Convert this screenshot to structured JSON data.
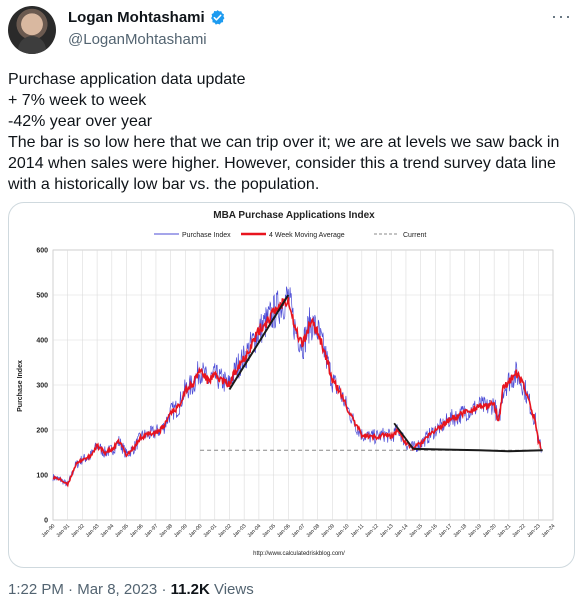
{
  "author": {
    "display_name": "Logan Mohtashami",
    "handle": "@LoganMohtashami"
  },
  "tweet": {
    "lines": [
      "Purchase application data update",
      "+ 7% week to week",
      "-42% year over year",
      "The bar is so low here that we can trip over it; we are at levels we saw back in 2014 when sales were higher. However, consider this a trend survey data line with a historically low bar vs. the population."
    ],
    "time": "1:22 PM",
    "date": "Mar 8, 2023",
    "separator": "·",
    "views_count": "11.2K",
    "views_label": "Views"
  },
  "colors": {
    "purchase_index": "#4b4bd6",
    "moving_average": "#e8141e",
    "current": "#888888",
    "trend": "#1a1a1a",
    "verified": "#1d9bf0"
  },
  "chart_data": {
    "type": "line",
    "title": "MBA Purchase Applications Index",
    "ylabel": "Purchase Index",
    "ylim": [
      0,
      600
    ],
    "yticks": [
      0,
      100,
      200,
      300,
      400,
      500,
      600
    ],
    "x_tick_labels": [
      "Jan-90",
      "Jan-91",
      "Jan-92",
      "Jan-93",
      "Jan-94",
      "Jan-95",
      "Jan-96",
      "Jan-97",
      "Jan-98",
      "Jan-99",
      "Jan-00",
      "Jan-01",
      "Jan-02",
      "Jan-03",
      "Jan-04",
      "Jan-05",
      "Jan-06",
      "Jan-07",
      "Jan-08",
      "Jan-09",
      "Jan-10",
      "Jan-11",
      "Jan-12",
      "Jan-13",
      "Jan-14",
      "Jan-15",
      "Jan-16",
      "Jan-17",
      "Jan-18",
      "Jan-19",
      "Jan-20",
      "Jan-21",
      "Jan-22",
      "Jan-23",
      "Jan-24"
    ],
    "x_range": [
      1990.0,
      2024.0
    ],
    "source": "http://www.calculatedriskblog.com/",
    "current_value": 155,
    "current_start": 2000.0,
    "legend": [
      "Purchase Index",
      "4 Week Moving Average",
      "Current"
    ],
    "legend_position": "top",
    "grid": true,
    "series": [
      {
        "name": "4 Week Moving Average",
        "x": [
          1990.0,
          1990.5,
          1991.0,
          1991.5,
          1992.0,
          1992.5,
          1993.0,
          1993.5,
          1994.0,
          1994.5,
          1995.0,
          1995.5,
          1996.0,
          1996.5,
          1997.0,
          1997.5,
          1998.0,
          1998.5,
          1999.0,
          1999.5,
          2000.0,
          2000.5,
          2001.0,
          2001.5,
          2002.0,
          2002.5,
          2003.0,
          2003.5,
          2004.0,
          2004.5,
          2005.0,
          2005.5,
          2006.0,
          2006.5,
          2007.0,
          2007.5,
          2008.0,
          2008.5,
          2009.0,
          2009.5,
          2010.0,
          2010.5,
          2011.0,
          2011.5,
          2012.0,
          2012.5,
          2013.0,
          2013.5,
          2014.0,
          2014.5,
          2015.0,
          2015.5,
          2016.0,
          2016.5,
          2017.0,
          2017.5,
          2018.0,
          2018.5,
          2019.0,
          2019.5,
          2020.0,
          2020.3,
          2020.6,
          2021.0,
          2021.5,
          2022.0,
          2022.5,
          2022.8,
          2023.0,
          2023.2
        ],
        "values": [
          95,
          90,
          78,
          120,
          135,
          140,
          165,
          150,
          155,
          175,
          145,
          160,
          185,
          190,
          195,
          205,
          240,
          250,
          290,
          300,
          335,
          310,
          320,
          310,
          300,
          340,
          360,
          390,
          420,
          440,
          460,
          480,
          495,
          420,
          390,
          440,
          420,
          370,
          310,
          285,
          250,
          215,
          190,
          185,
          185,
          190,
          185,
          200,
          170,
          160,
          170,
          185,
          200,
          210,
          225,
          230,
          240,
          245,
          255,
          250,
          260,
          215,
          290,
          310,
          325,
          300,
          250,
          220,
          175,
          160
        ]
      },
      {
        "name": "Current",
        "x": [
          2000.0,
          2023.3
        ],
        "values": [
          155,
          155
        ]
      }
    ]
  }
}
